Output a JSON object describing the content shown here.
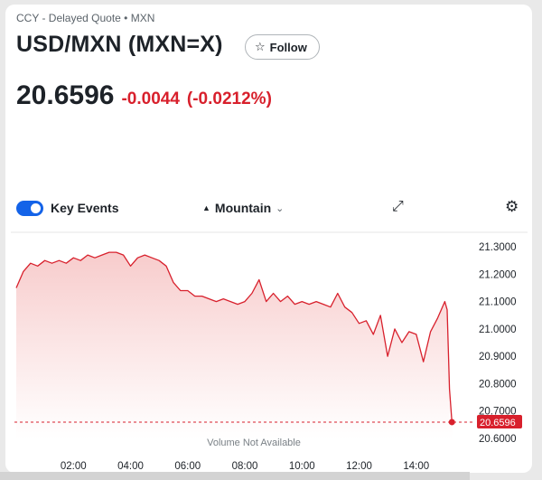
{
  "header": {
    "subtitle": "CCY - Delayed Quote • MXN",
    "title": "USD/MXN (MXN=X)",
    "follow_label": "Follow",
    "follow_icon": "star-outline"
  },
  "quote": {
    "price": "20.6596",
    "change": "-0.0044",
    "change_pct": "(-0.0212%)",
    "change_color": "#d8202c"
  },
  "toolbar": {
    "key_events_label": "Key Events",
    "key_events_on": true,
    "chart_type_label": "Mountain",
    "chart_type_icon": "mountain-icon",
    "expand_icon": "expand-icon",
    "settings_icon": "gear-icon"
  },
  "chart_data": {
    "type": "area",
    "title": "",
    "xlabel": "",
    "ylabel": "",
    "x_tick_labels": [
      "02:00",
      "04:00",
      "06:00",
      "08:00",
      "10:00",
      "12:00",
      "14:00"
    ],
    "y_tick_labels": [
      "21.3000",
      "21.2000",
      "21.1000",
      "21.0000",
      "20.9000",
      "20.8000",
      "20.7000",
      "20.6000"
    ],
    "ylim": [
      20.6,
      21.32
    ],
    "xlim": [
      "00:00",
      "16:00"
    ],
    "current_value_label": "20.6596",
    "current_value": 20.6596,
    "volume_note": "Volume Not Available",
    "line_color": "#d8202c",
    "fill_color": "#fbd8d8",
    "grid": false,
    "series": [
      {
        "x": [
          "00:00",
          "00:15",
          "00:30",
          "00:45",
          "01:00",
          "01:15",
          "01:30",
          "01:45",
          "02:00",
          "02:15",
          "02:30",
          "02:45",
          "03:00",
          "03:15",
          "03:30",
          "03:45",
          "04:00",
          "04:15",
          "04:30",
          "04:45",
          "05:00",
          "05:15",
          "05:30",
          "05:45",
          "06:00",
          "06:15",
          "06:30",
          "06:45",
          "07:00",
          "07:15",
          "07:30",
          "07:45",
          "08:00",
          "08:15",
          "08:30",
          "08:45",
          "09:00",
          "09:15",
          "09:30",
          "09:45",
          "10:00",
          "10:15",
          "10:30",
          "10:45",
          "11:00",
          "11:15",
          "11:30",
          "11:45",
          "12:00",
          "12:15",
          "12:30",
          "12:45",
          "13:00",
          "13:15",
          "13:30",
          "13:45",
          "14:00",
          "14:15",
          "14:30",
          "14:45",
          "15:00",
          "15:05",
          "15:10",
          "15:15"
        ],
        "y": [
          21.15,
          21.21,
          21.24,
          21.23,
          21.25,
          21.24,
          21.25,
          21.24,
          21.26,
          21.25,
          21.27,
          21.26,
          21.27,
          21.28,
          21.28,
          21.27,
          21.23,
          21.26,
          21.27,
          21.26,
          21.25,
          21.23,
          21.17,
          21.14,
          21.14,
          21.12,
          21.12,
          21.11,
          21.1,
          21.11,
          21.1,
          21.09,
          21.1,
          21.13,
          21.18,
          21.1,
          21.13,
          21.1,
          21.12,
          21.09,
          21.1,
          21.09,
          21.1,
          21.09,
          21.08,
          21.13,
          21.08,
          21.06,
          21.02,
          21.03,
          20.98,
          21.05,
          20.9,
          21.0,
          20.95,
          20.99,
          20.98,
          20.88,
          20.99,
          21.04,
          21.1,
          21.07,
          20.78,
          20.6596
        ]
      }
    ]
  },
  "bottom_note": ""
}
